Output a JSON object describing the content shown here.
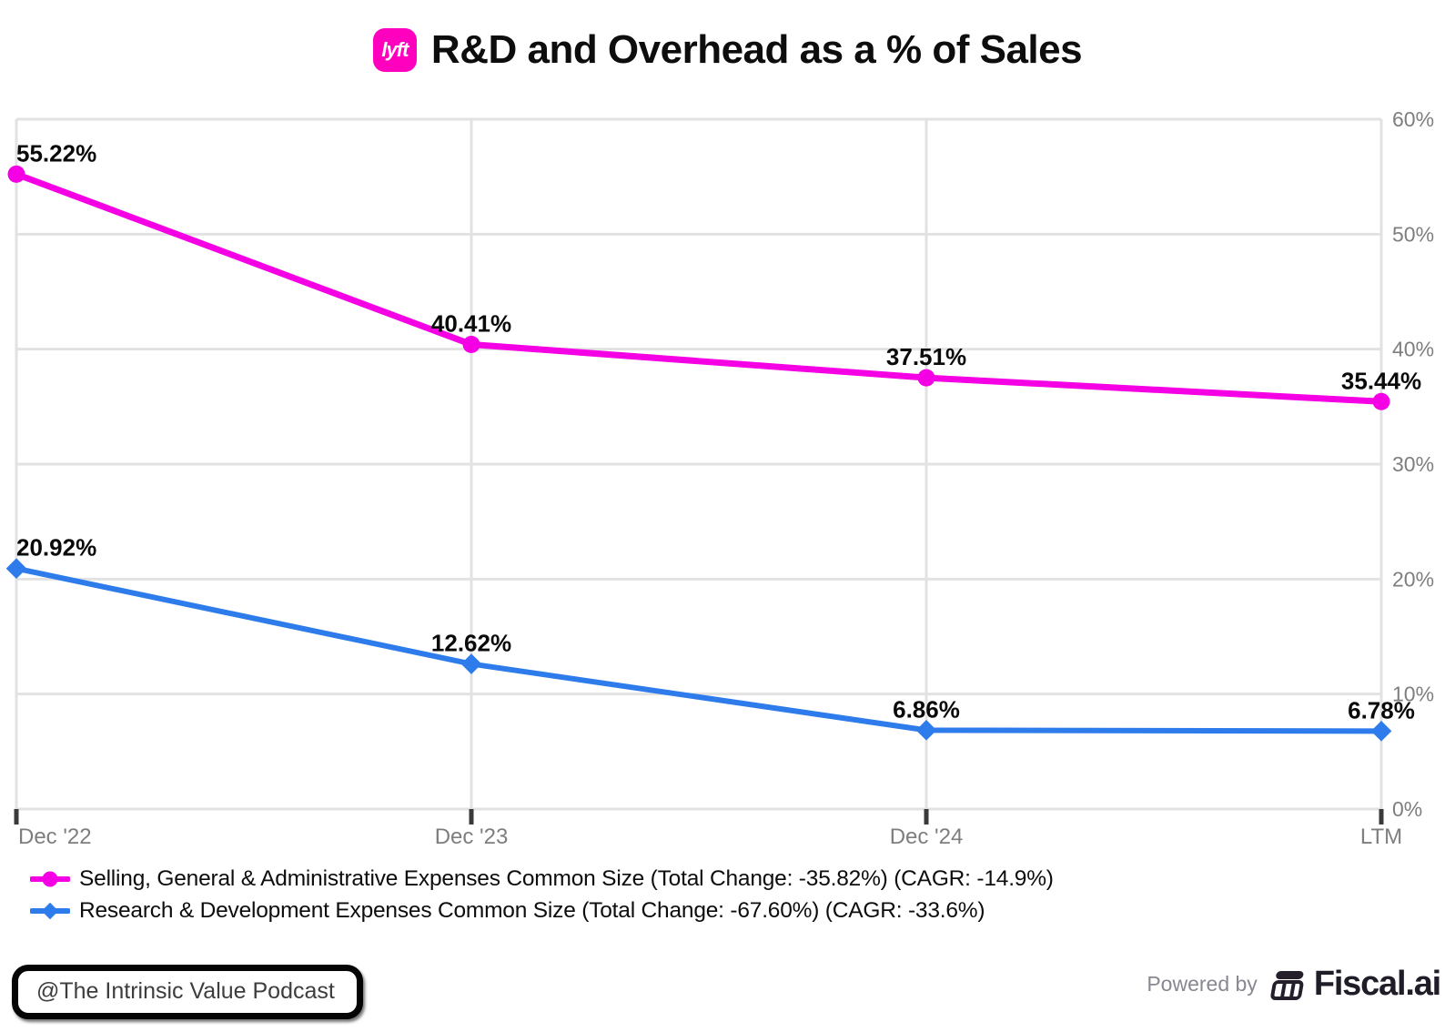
{
  "header": {
    "logo_text": "lyft",
    "title": "R&D and Overhead as a % of Sales"
  },
  "chart_data": {
    "type": "line",
    "categories": [
      "Dec '22",
      "Dec '23",
      "Dec '24",
      "LTM"
    ],
    "y_ticks": [
      "0%",
      "10%",
      "20%",
      "30%",
      "40%",
      "50%",
      "60%"
    ],
    "ylim": [
      0,
      60
    ],
    "grid": true,
    "legend_position": "bottom-left",
    "series": [
      {
        "name": "Selling, General & Administrative Expenses Common Size (Total Change: -35.82%) (CAGR: -14.9%)",
        "color": "#F500E4",
        "marker": "circle",
        "values": [
          55.22,
          40.41,
          37.51,
          35.44
        ],
        "labels": [
          "55.22%",
          "40.41%",
          "37.51%",
          "35.44%"
        ]
      },
      {
        "name": "Research & Development Expenses Common Size (Total Change: -67.60%) (CAGR: -33.6%)",
        "color": "#2E7CEB",
        "marker": "diamond",
        "values": [
          20.92,
          12.62,
          6.86,
          6.78
        ],
        "labels": [
          "20.92%",
          "12.62%",
          "6.86%",
          "6.78%"
        ]
      }
    ]
  },
  "footer": {
    "watermark": "@The Intrinsic Value Podcast",
    "powered_by": "Powered by",
    "brand": "Fiscal.ai"
  },
  "colors": {
    "lyft_pink": "#FF00BF",
    "grid": "#E2E2E2",
    "axis_text": "#7E7E7E",
    "tick": "#3A3A3A",
    "data_label": "#0a0a0a"
  }
}
